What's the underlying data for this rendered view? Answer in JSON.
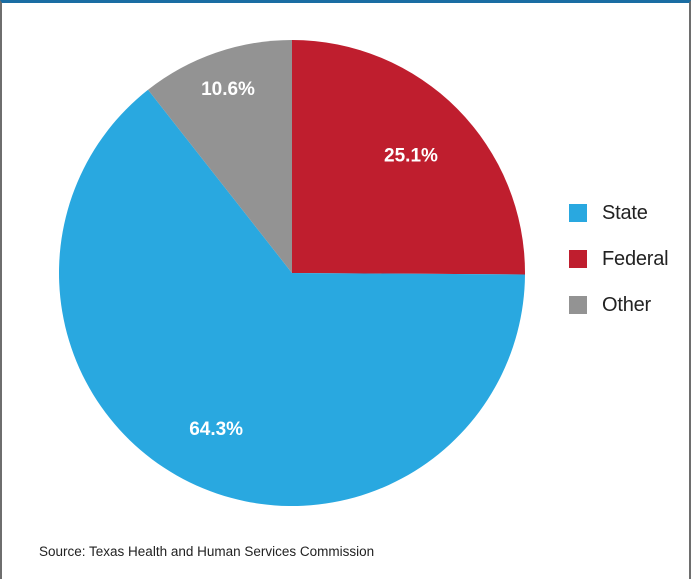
{
  "chart_data": {
    "type": "pie",
    "slices": [
      {
        "name": "Federal",
        "value": 25.1,
        "label": "25.1%",
        "color": "#bf1e2e"
      },
      {
        "name": "State",
        "value": 64.3,
        "label": "64.3%",
        "color": "#29a8e0"
      },
      {
        "name": "Other",
        "value": 10.6,
        "label": "10.6%",
        "color": "#939393"
      }
    ],
    "legend": {
      "placement": "right",
      "items": [
        {
          "label": "State",
          "color": "#29a8e0"
        },
        {
          "label": "Federal",
          "color": "#bf1e2e"
        },
        {
          "label": "Other",
          "color": "#939393"
        }
      ]
    }
  },
  "source": "Source: Texas Health and Human Services Commission",
  "colors": {
    "frame_top": "#1a6da3",
    "frame_side": "#6e6e6e"
  }
}
